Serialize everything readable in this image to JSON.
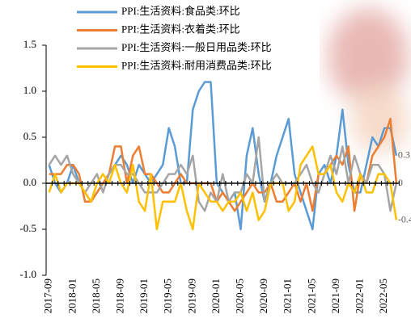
{
  "chart_data": {
    "type": "line",
    "categories": [
      "2017-09",
      null,
      null,
      null,
      "2018-01",
      null,
      null,
      null,
      "2018-05",
      null,
      null,
      null,
      "2018-09",
      null,
      null,
      null,
      "2019-01",
      null,
      null,
      null,
      "2019-05",
      null,
      null,
      null,
      "2019-09",
      null,
      null,
      null,
      "2020-01",
      null,
      null,
      null,
      "2020-05",
      null,
      null,
      null,
      "2020-09",
      null,
      null,
      null,
      "2021-01",
      null,
      null,
      null,
      "2021-05",
      null,
      null,
      null,
      "2021-09",
      null,
      null,
      null,
      "2022-01",
      null,
      null,
      null,
      "2022-05",
      null,
      null
    ],
    "series": [
      {
        "name": "PPI:生活资料:食品类:环比",
        "color": "#5b9bd5",
        "end_label": true,
        "values": [
          0.2,
          0.0,
          -0.1,
          0.0,
          0.2,
          0.0,
          -0.1,
          -0.2,
          -0.1,
          0.0,
          0.1,
          0.2,
          0.3,
          0.2,
          0.0,
          0.2,
          0.1,
          0.0,
          0.1,
          0.2,
          0.6,
          0.4,
          0.0,
          0.0,
          0.8,
          1.0,
          1.1,
          1.1,
          0.0,
          -0.1,
          -0.2,
          -0.1,
          -0.5,
          0.3,
          0.6,
          0.1,
          -0.2,
          0.0,
          0.3,
          0.5,
          0.7,
          0.1,
          -0.1,
          -0.3,
          -0.5,
          0.1,
          0.2,
          0.0,
          0.3,
          0.8,
          0.2,
          -0.1,
          -0.1,
          0.2,
          0.5,
          0.4,
          0.6,
          0.6,
          0.3
        ]
      },
      {
        "name": "PPI:生活资料:衣着类:环比",
        "color": "#ed7d31",
        "end_label": true,
        "values": [
          0.1,
          0.1,
          0.1,
          0.2,
          0.2,
          0.1,
          -0.2,
          -0.2,
          -0.1,
          0.0,
          0.1,
          0.4,
          0.4,
          0.0,
          0.3,
          0.4,
          0.1,
          0.1,
          0.0,
          -0.1,
          -0.1,
          0.0,
          0.1,
          0.0,
          0.0,
          0.0,
          0.0,
          0.0,
          -0.2,
          -0.1,
          -0.2,
          -0.3,
          -0.2,
          -0.1,
          0.0,
          -0.1,
          -0.1,
          0.0,
          -0.2,
          -0.2,
          -0.1,
          0.0,
          -0.2,
          0.0,
          -0.3,
          0.1,
          0.1,
          0.2,
          0.3,
          0.2,
          0.4,
          -0.3,
          0.1,
          0.0,
          0.3,
          0.4,
          0.5,
          0.7,
          0
        ]
      },
      {
        "name": "PPI:生活资料:一般日用品类:环比",
        "color": "#a5a5a5",
        "end_label": false,
        "values": [
          0.2,
          0.3,
          0.2,
          0.3,
          0.1,
          0.0,
          -0.1,
          0.0,
          0.1,
          -0.1,
          0.1,
          0.2,
          0.2,
          0.1,
          0.1,
          0.0,
          -0.1,
          -0.1,
          -0.1,
          0.0,
          0.1,
          0.1,
          0.2,
          0.1,
          0.3,
          -0.2,
          -0.3,
          -0.1,
          -0.2,
          0.1,
          -0.2,
          -0.1,
          -0.1,
          0.1,
          0.0,
          0.5,
          -0.2,
          0.0,
          0.1,
          0.0,
          0.0,
          0.0,
          0.1,
          0.2,
          0.0,
          -0.1,
          0.1,
          0.3,
          0.1,
          0.4,
          0.0,
          0.3,
          0.1,
          0.0,
          0.2,
          0.2,
          0.1,
          -0.3,
          0.0
        ]
      },
      {
        "name": "PPI:生活资料:耐用消费品类:环比",
        "color": "#ffc000",
        "end_label": true,
        "values": [
          -0.1,
          0.1,
          -0.1,
          0.0,
          0.0,
          0.0,
          -0.1,
          -0.2,
          0.0,
          0.1,
          0.0,
          0.2,
          0.0,
          -0.1,
          0.2,
          -0.2,
          -0.3,
          0.1,
          -0.5,
          -0.2,
          -0.2,
          -0.2,
          0.0,
          -0.3,
          -0.5,
          0.0,
          -0.1,
          -0.2,
          -0.2,
          -0.3,
          -0.2,
          -0.2,
          -0.1,
          -0.3,
          -0.1,
          -0.4,
          -0.3,
          0.0,
          0.0,
          0.0,
          -0.3,
          -0.2,
          0.2,
          0.3,
          0.4,
          0.1,
          0.1,
          0.2,
          -0.1,
          -0.2,
          0.0,
          -0.1,
          0.1,
          -0.1,
          -0.1,
          0.1,
          0.1,
          0.0,
          -0.4
        ]
      }
    ],
    "ylim": [
      -1.0,
      1.5
    ],
    "yticks": [
      {
        "value": -1.0,
        "label": "-1.0"
      },
      {
        "value": -0.5,
        "label": "-0.5"
      },
      {
        "value": 0.0,
        "label": "0.0"
      },
      {
        "value": 0.5,
        "label": "0.5"
      },
      {
        "value": 1.0,
        "label": "1.0"
      },
      {
        "value": 1.5,
        "label": "1.5"
      }
    ],
    "grid": false
  }
}
